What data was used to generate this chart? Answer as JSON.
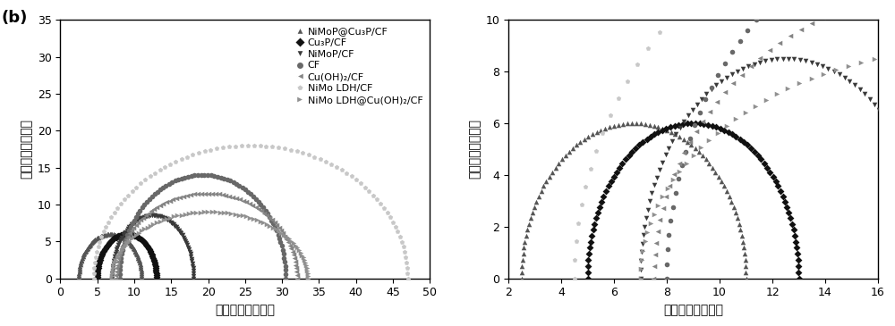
{
  "series": [
    {
      "label": "NiMoP@Cu₃P/CF",
      "marker": "^",
      "color": "#555555",
      "x_start": 2.5,
      "x_end": 11.0,
      "peak_y": 6.0
    },
    {
      "label": "Cu₃P/CF",
      "marker": "D",
      "color": "#111111",
      "x_start": 5.0,
      "x_end": 13.0,
      "peak_y": 6.0
    },
    {
      "label": "NiMoP/CF",
      "marker": "v",
      "color": "#3a3a3a",
      "x_start": 7.0,
      "x_end": 18.0,
      "peak_y": 8.5
    },
    {
      "label": "CF",
      "marker": "o",
      "color": "#686868",
      "x_start": 8.0,
      "x_end": 30.5,
      "peak_y": 14.0
    },
    {
      "label": "Cu(OH)₂/CF",
      "marker": "<",
      "color": "#848484",
      "x_start": 7.5,
      "x_end": 32.0,
      "peak_y": 11.5
    },
    {
      "label": "NiMo LDH/CF",
      "marker": "p",
      "color": "#c8c8c8",
      "x_start": 4.5,
      "x_end": 47.0,
      "peak_y": 18.0
    },
    {
      "label": "NiMo LDH@Cu(OH)₂/CF",
      "marker": ">",
      "color": "#909090",
      "x_start": 7.0,
      "x_end": 33.5,
      "peak_y": 9.0
    }
  ],
  "xlabel": "实部阻抗（欧姆）",
  "ylabel": "虚部阻抗（欧姆）",
  "xlim_left": [
    0,
    50
  ],
  "ylim_left": [
    0,
    35
  ],
  "xticks_left": [
    0,
    5,
    10,
    15,
    20,
    25,
    30,
    35,
    40,
    45,
    50
  ],
  "yticks_left": [
    0,
    5,
    10,
    15,
    20,
    25,
    30,
    35
  ],
  "xlim_right": [
    2,
    16
  ],
  "ylim_right": [
    0,
    10
  ],
  "xticks_right": [
    2,
    4,
    6,
    8,
    10,
    12,
    14,
    16
  ],
  "yticks_right": [
    0,
    2,
    4,
    6,
    8,
    10
  ],
  "label_left": "(b)",
  "fontsize_axes_label": 10,
  "fontsize_tick": 9,
  "fontsize_legend": 8,
  "fontsize_panel_label": 13,
  "marker_size": 4,
  "n_points": 80
}
